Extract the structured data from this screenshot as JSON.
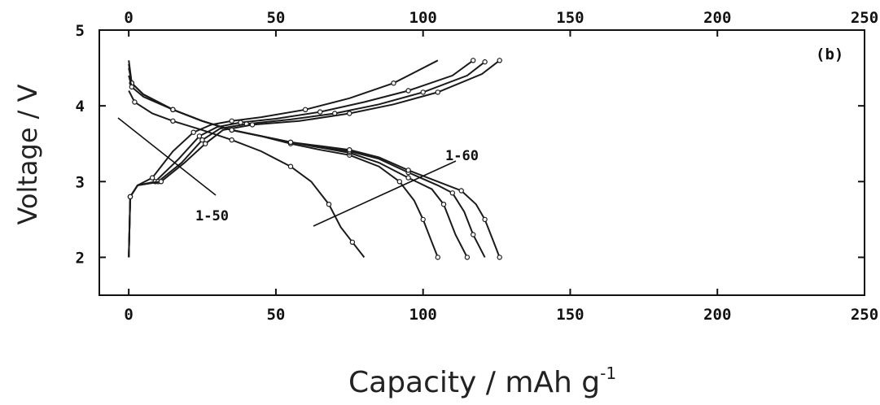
{
  "chart_data": {
    "type": "line",
    "panel_label": "(b)",
    "xlabel": "Capacity / mAh g",
    "xlabel_superscript": "-1",
    "ylabel": "Voltage / V",
    "xlim": [
      -10,
      250
    ],
    "ylim": [
      1.5,
      5
    ],
    "x_ticks": [
      0,
      50,
      100,
      150,
      200,
      250
    ],
    "y_ticks": [
      2,
      3,
      4,
      5
    ],
    "x_tick_labels": [
      "0",
      "50",
      "100",
      "150",
      "200",
      "250"
    ],
    "y_tick_labels": [
      "2",
      "3",
      "4",
      "5"
    ],
    "grid": false,
    "annotations": [
      {
        "text": "1-50",
        "target": "charge"
      },
      {
        "text": "1-60",
        "target": "discharge"
      }
    ],
    "series": [
      {
        "group": "charge",
        "x": [
          0,
          0.5,
          3,
          8,
          15,
          22,
          28,
          35,
          45,
          60,
          75,
          90,
          105
        ],
        "y": [
          2.0,
          2.8,
          2.95,
          3.05,
          3.4,
          3.65,
          3.75,
          3.8,
          3.85,
          3.95,
          4.1,
          4.3,
          4.6
        ]
      },
      {
        "group": "charge",
        "x": [
          0,
          0.5,
          3,
          9,
          17,
          24,
          30,
          38,
          50,
          65,
          80,
          95,
          110,
          117
        ],
        "y": [
          2.0,
          2.8,
          2.95,
          3.0,
          3.3,
          3.6,
          3.72,
          3.78,
          3.83,
          3.92,
          4.05,
          4.2,
          4.4,
          4.6
        ]
      },
      {
        "group": "charge",
        "x": [
          0,
          0.5,
          3,
          10,
          18,
          25,
          31,
          40,
          55,
          70,
          85,
          100,
          115,
          121
        ],
        "y": [
          2.0,
          2.8,
          2.95,
          3.0,
          3.25,
          3.55,
          3.7,
          3.76,
          3.82,
          3.9,
          4.02,
          4.18,
          4.4,
          4.58
        ]
      },
      {
        "group": "charge",
        "x": [
          0,
          0.5,
          3,
          11,
          19,
          26,
          32,
          42,
          58,
          75,
          90,
          105,
          120,
          126
        ],
        "y": [
          2.0,
          2.8,
          2.95,
          3.0,
          3.25,
          3.5,
          3.68,
          3.75,
          3.8,
          3.9,
          4.02,
          4.18,
          4.42,
          4.6
        ]
      },
      {
        "group": "discharge",
        "x": [
          0,
          2,
          8,
          15,
          25,
          35,
          45,
          55,
          62,
          68,
          72,
          76,
          80
        ],
        "y": [
          4.2,
          4.05,
          3.9,
          3.8,
          3.68,
          3.55,
          3.4,
          3.2,
          3.0,
          2.7,
          2.4,
          2.2,
          2.0
        ]
      },
      {
        "group": "discharge",
        "x": [
          0,
          1,
          5,
          15,
          25,
          35,
          45,
          55,
          65,
          75,
          85,
          92,
          97,
          100,
          103,
          105
        ],
        "y": [
          4.6,
          4.3,
          4.15,
          3.95,
          3.8,
          3.68,
          3.6,
          3.5,
          3.42,
          3.35,
          3.2,
          3.0,
          2.75,
          2.5,
          2.2,
          2.0
        ]
      },
      {
        "group": "discharge",
        "x": [
          0,
          1,
          5,
          15,
          25,
          35,
          45,
          55,
          65,
          75,
          85,
          95,
          103,
          107,
          111,
          115
        ],
        "y": [
          4.55,
          4.3,
          4.15,
          3.95,
          3.8,
          3.68,
          3.6,
          3.52,
          3.45,
          3.38,
          3.25,
          3.05,
          2.9,
          2.7,
          2.3,
          2.0
        ]
      },
      {
        "group": "discharge",
        "x": [
          0,
          1,
          5,
          15,
          25,
          35,
          45,
          55,
          65,
          75,
          85,
          95,
          105,
          110,
          114,
          117,
          121
        ],
        "y": [
          4.5,
          4.3,
          4.15,
          3.95,
          3.8,
          3.68,
          3.6,
          3.52,
          3.45,
          3.4,
          3.3,
          3.12,
          2.95,
          2.85,
          2.6,
          2.3,
          2.0
        ]
      },
      {
        "group": "discharge",
        "x": [
          0,
          1,
          5,
          15,
          25,
          35,
          45,
          55,
          65,
          75,
          85,
          95,
          105,
          113,
          118,
          121,
          124,
          126
        ],
        "y": [
          4.4,
          4.25,
          4.12,
          3.95,
          3.8,
          3.68,
          3.6,
          3.52,
          3.47,
          3.42,
          3.32,
          3.15,
          3.0,
          2.88,
          2.7,
          2.5,
          2.2,
          2.0
        ]
      }
    ]
  }
}
